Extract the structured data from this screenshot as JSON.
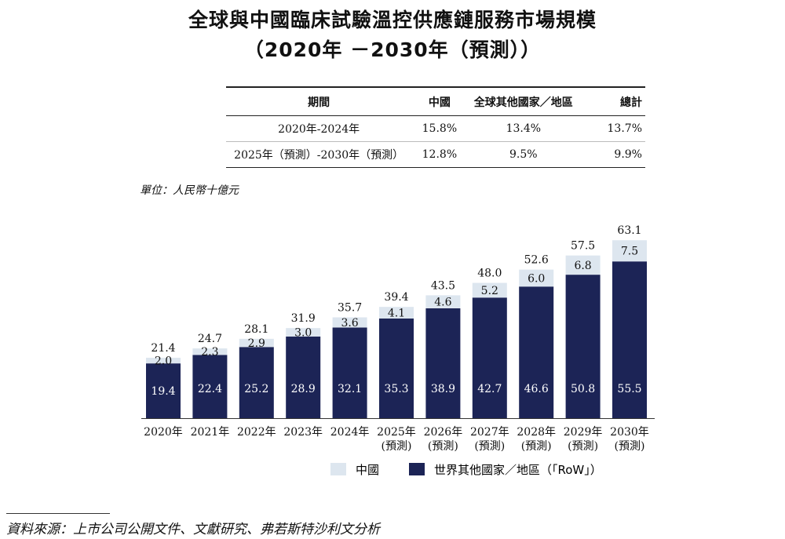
{
  "title_line1": "全球與中國臨床試驗溫控供應鏈服務市場規模",
  "title_line2": "（2020年 －2030年（預測））",
  "table": {
    "headers": [
      "期間",
      "中國",
      "全球其他國家／地區",
      "總計"
    ],
    "rows": [
      [
        "2020年-2024年",
        "15.8%",
        "13.4%",
        "13.7%"
      ],
      [
        "2025年（預測）-2030年（預測）",
        "12.8%",
        "9.5%",
        "9.9%"
      ]
    ]
  },
  "unit": "單位：人民幣十億元",
  "colors": {
    "china": "#dde6ef",
    "row": "#1c2456"
  },
  "chart_data": {
    "type": "bar",
    "stacked": true,
    "categories": [
      [
        "2020年"
      ],
      [
        "2021年"
      ],
      [
        "2022年"
      ],
      [
        "2023年"
      ],
      [
        "2024年"
      ],
      [
        "2025年",
        "(預測)"
      ],
      [
        "2026年",
        "(預測)"
      ],
      [
        "2027年",
        "(預測)"
      ],
      [
        "2028年",
        "(預測)"
      ],
      [
        "2029年",
        "(預測)"
      ],
      [
        "2030年",
        "(預測)"
      ]
    ],
    "series": [
      {
        "name": "世界其他國家／地區（「RoW」）",
        "values": [
          19.4,
          22.4,
          25.2,
          28.9,
          32.1,
          35.3,
          38.9,
          42.7,
          46.6,
          50.8,
          55.5
        ]
      },
      {
        "name": "中國",
        "values": [
          2.0,
          2.3,
          2.9,
          3.0,
          3.6,
          4.1,
          4.6,
          5.2,
          6.0,
          6.8,
          7.5
        ]
      }
    ],
    "totals": [
      21.4,
      24.7,
      28.1,
      31.9,
      35.7,
      39.4,
      43.5,
      48.0,
      52.6,
      57.5,
      63.1
    ],
    "legend": [
      "中國",
      "世界其他國家／地區（「RoW」）"
    ]
  },
  "source": "資料來源：上市公司公開文件、文獻研究、弗若斯特沙利文分析"
}
